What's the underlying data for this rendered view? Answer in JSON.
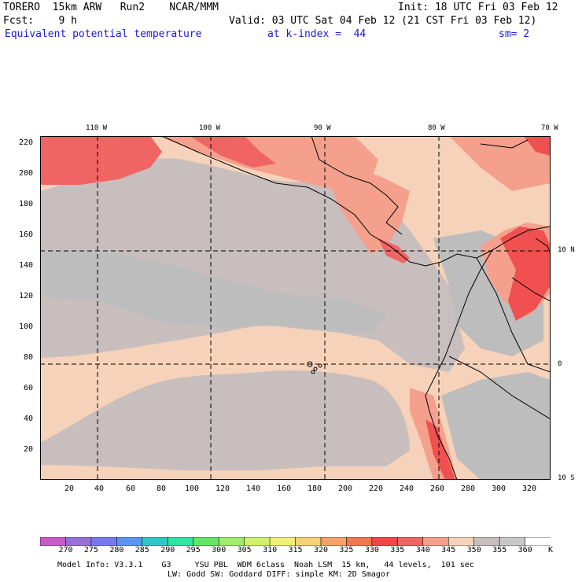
{
  "header": {
    "model": "TORERO",
    "resolution": "15km ARW",
    "run": "Run2",
    "org": "NCAR/MMM",
    "init": "Init: 18 UTC Fri 03 Feb 12",
    "fcst_label": "Fcst:",
    "fcst_value": "9 h",
    "valid": "Valid: 03 UTC Sat 04 Feb 12 (21 CST Fri 03 Feb 12)",
    "field": "Equivalent potential temperature",
    "level": "at k-index =  44",
    "smoothing": "sm= 2"
  },
  "map": {
    "top_lon_labels": [
      "110 W",
      "100 W",
      "90 W",
      "80 W",
      "70 W"
    ],
    "right_lat_labels": [
      "10 N",
      "0",
      "10 S"
    ],
    "y_grid_labels": [
      "220",
      "200",
      "180",
      "160",
      "140",
      "120",
      "100",
      "80",
      "60",
      "40",
      "20"
    ],
    "x_grid_labels": [
      "20",
      "40",
      "60",
      "80",
      "100",
      "120",
      "140",
      "160",
      "180",
      "200",
      "220",
      "240",
      "260",
      "280",
      "300",
      "320"
    ]
  },
  "colorbar": {
    "labels": [
      "270",
      "275",
      "280",
      "285",
      "290",
      "295",
      "300",
      "305",
      "310",
      "315",
      "320",
      "325",
      "330",
      "335",
      "340",
      "345",
      "350",
      "355",
      "360"
    ],
    "unit": "K",
    "colors": [
      "#c85ac8",
      "#9670d6",
      "#7878ee",
      "#5a96f0",
      "#2ec8c8",
      "#2ee6a0",
      "#64e664",
      "#a0ec6e",
      "#d2f06e",
      "#f0f078",
      "#f5d278",
      "#f5a064",
      "#f07850",
      "#f04646",
      "#f06464",
      "#f5a08c",
      "#f5d2b9",
      "#c8bebe",
      "#c8c8c8",
      "#ffffff"
    ]
  },
  "footer": {
    "line1": "Model Info: V3.3.1    G3     YSU PBL  WDM 6class  Noah LSM  15 km,   44 levels,  101 sec",
    "line2": "LW: Godd SW: Goddard DIFF: simple KM: 2D Smagor"
  }
}
